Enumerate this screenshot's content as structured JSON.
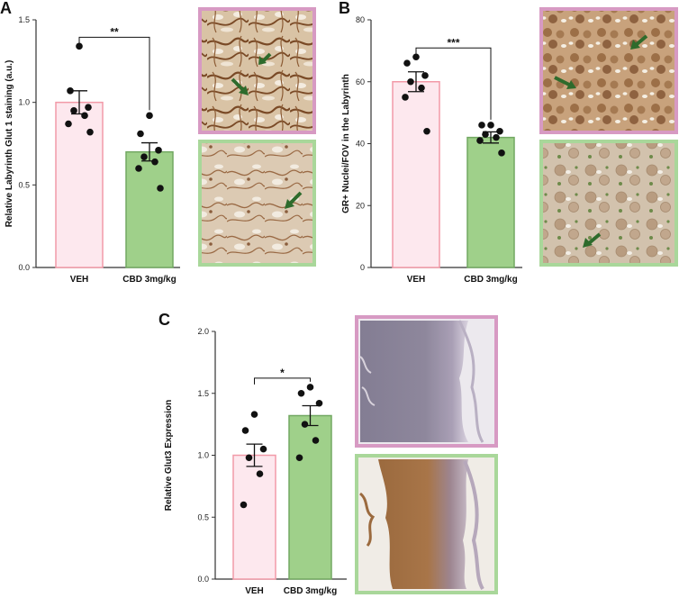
{
  "colors": {
    "veh_fill": "#fde8ee",
    "veh_stroke": "#f29aa8",
    "cbd_fill": "#9fd08a",
    "cbd_stroke": "#72a862",
    "veh_frame": "#d79ac3",
    "cbd_frame": "#a9d79a",
    "arrow": "#2e6b2c",
    "axis": "#333333"
  },
  "panels": {
    "a": {
      "letter": "A"
    },
    "b": {
      "letter": "B"
    },
    "c": {
      "letter": "C"
    }
  },
  "chart_data": [
    {
      "id": "A",
      "type": "bar",
      "ylabel": "Relative Labyrinth Glut 1 staining (a.u.)",
      "ylim": [
        0,
        1.5
      ],
      "yticks": [
        "0.0",
        "0.5",
        "1.0",
        "1.5"
      ],
      "ytick_values": [
        0,
        0.5,
        1.0,
        1.5
      ],
      "categories": [
        "VEH",
        "CBD 3mg/kg"
      ],
      "values": [
        1.0,
        0.7
      ],
      "sem": [
        0.07,
        0.055
      ],
      "points": [
        [
          1.34,
          1.07,
          0.97,
          0.95,
          0.92,
          0.87,
          0.82
        ],
        [
          0.92,
          0.81,
          0.71,
          0.67,
          0.64,
          0.6,
          0.48
        ]
      ],
      "significance": "**"
    },
    {
      "id": "B",
      "type": "bar",
      "ylabel": "GR+ Nuclei/FOV in the Labyrinth",
      "ylim": [
        0,
        80
      ],
      "yticks": [
        "0",
        "20",
        "40",
        "60",
        "80"
      ],
      "ytick_values": [
        0,
        20,
        40,
        60,
        80
      ],
      "categories": [
        "VEH",
        "CBD 3mg/kg"
      ],
      "values": [
        60,
        42
      ],
      "sem": [
        3.2,
        1.8
      ],
      "points": [
        [
          68,
          66,
          62,
          60,
          58,
          55,
          44
        ],
        [
          46,
          46,
          44,
          43,
          42,
          41,
          37
        ]
      ],
      "significance": "***"
    },
    {
      "id": "C",
      "type": "bar",
      "ylabel": "Relative Glut3 Expression",
      "ylim": [
        0,
        2.0
      ],
      "yticks": [
        "0.0",
        "0.5",
        "1.0",
        "1.5",
        "2.0"
      ],
      "ytick_values": [
        0,
        0.5,
        1.0,
        1.5,
        2.0
      ],
      "categories": [
        "VEH",
        "CBD 3mg/kg"
      ],
      "values": [
        1.0,
        1.32
      ],
      "sem": [
        0.09,
        0.08
      ],
      "points": [
        [
          1.33,
          1.2,
          1.05,
          0.98,
          0.85,
          0.6
        ],
        [
          1.55,
          1.5,
          1.42,
          1.25,
          1.12,
          0.98
        ]
      ],
      "significance": "*"
    }
  ]
}
